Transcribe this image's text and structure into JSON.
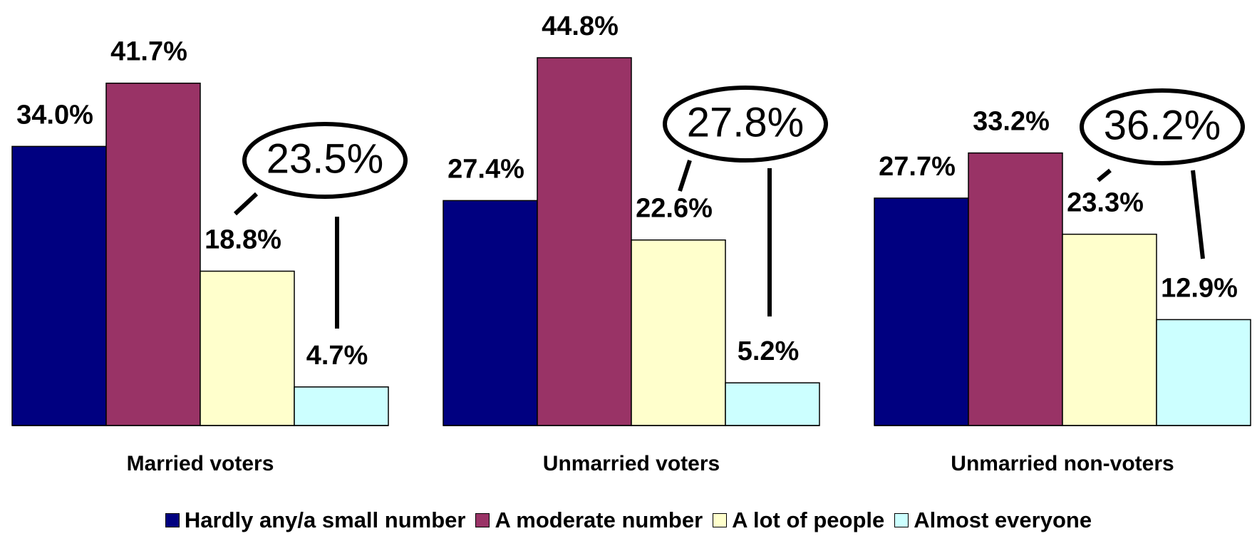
{
  "chart_data": {
    "type": "bar",
    "categories": [
      "Married voters",
      "Unmarried voters",
      "Unmarried non-voters"
    ],
    "series": [
      {
        "name": "Hardly any/a small number",
        "color": "#000080",
        "values": [
          34.0,
          27.4,
          27.7
        ],
        "value_labels": [
          "34.0%",
          "27.4%",
          "27.7%"
        ]
      },
      {
        "name": "A moderate number",
        "color": "#993366",
        "values": [
          41.7,
          44.8,
          33.2
        ],
        "value_labels": [
          "41.7%",
          "44.8%",
          "33.2%"
        ]
      },
      {
        "name": "A lot of people",
        "color": "#ffffcc",
        "values": [
          18.8,
          22.6,
          23.3
        ],
        "value_labels": [
          "18.8%",
          "22.6%",
          "23.3%"
        ]
      },
      {
        "name": "Almost everyone",
        "color": "#ccffff",
        "values": [
          4.7,
          5.2,
          12.9
        ],
        "value_labels": [
          "4.7%",
          "5.2%",
          "12.9%"
        ]
      }
    ],
    "annotations": [
      "23.5%",
      "27.8%",
      "36.2%"
    ],
    "legend": "bottom"
  }
}
